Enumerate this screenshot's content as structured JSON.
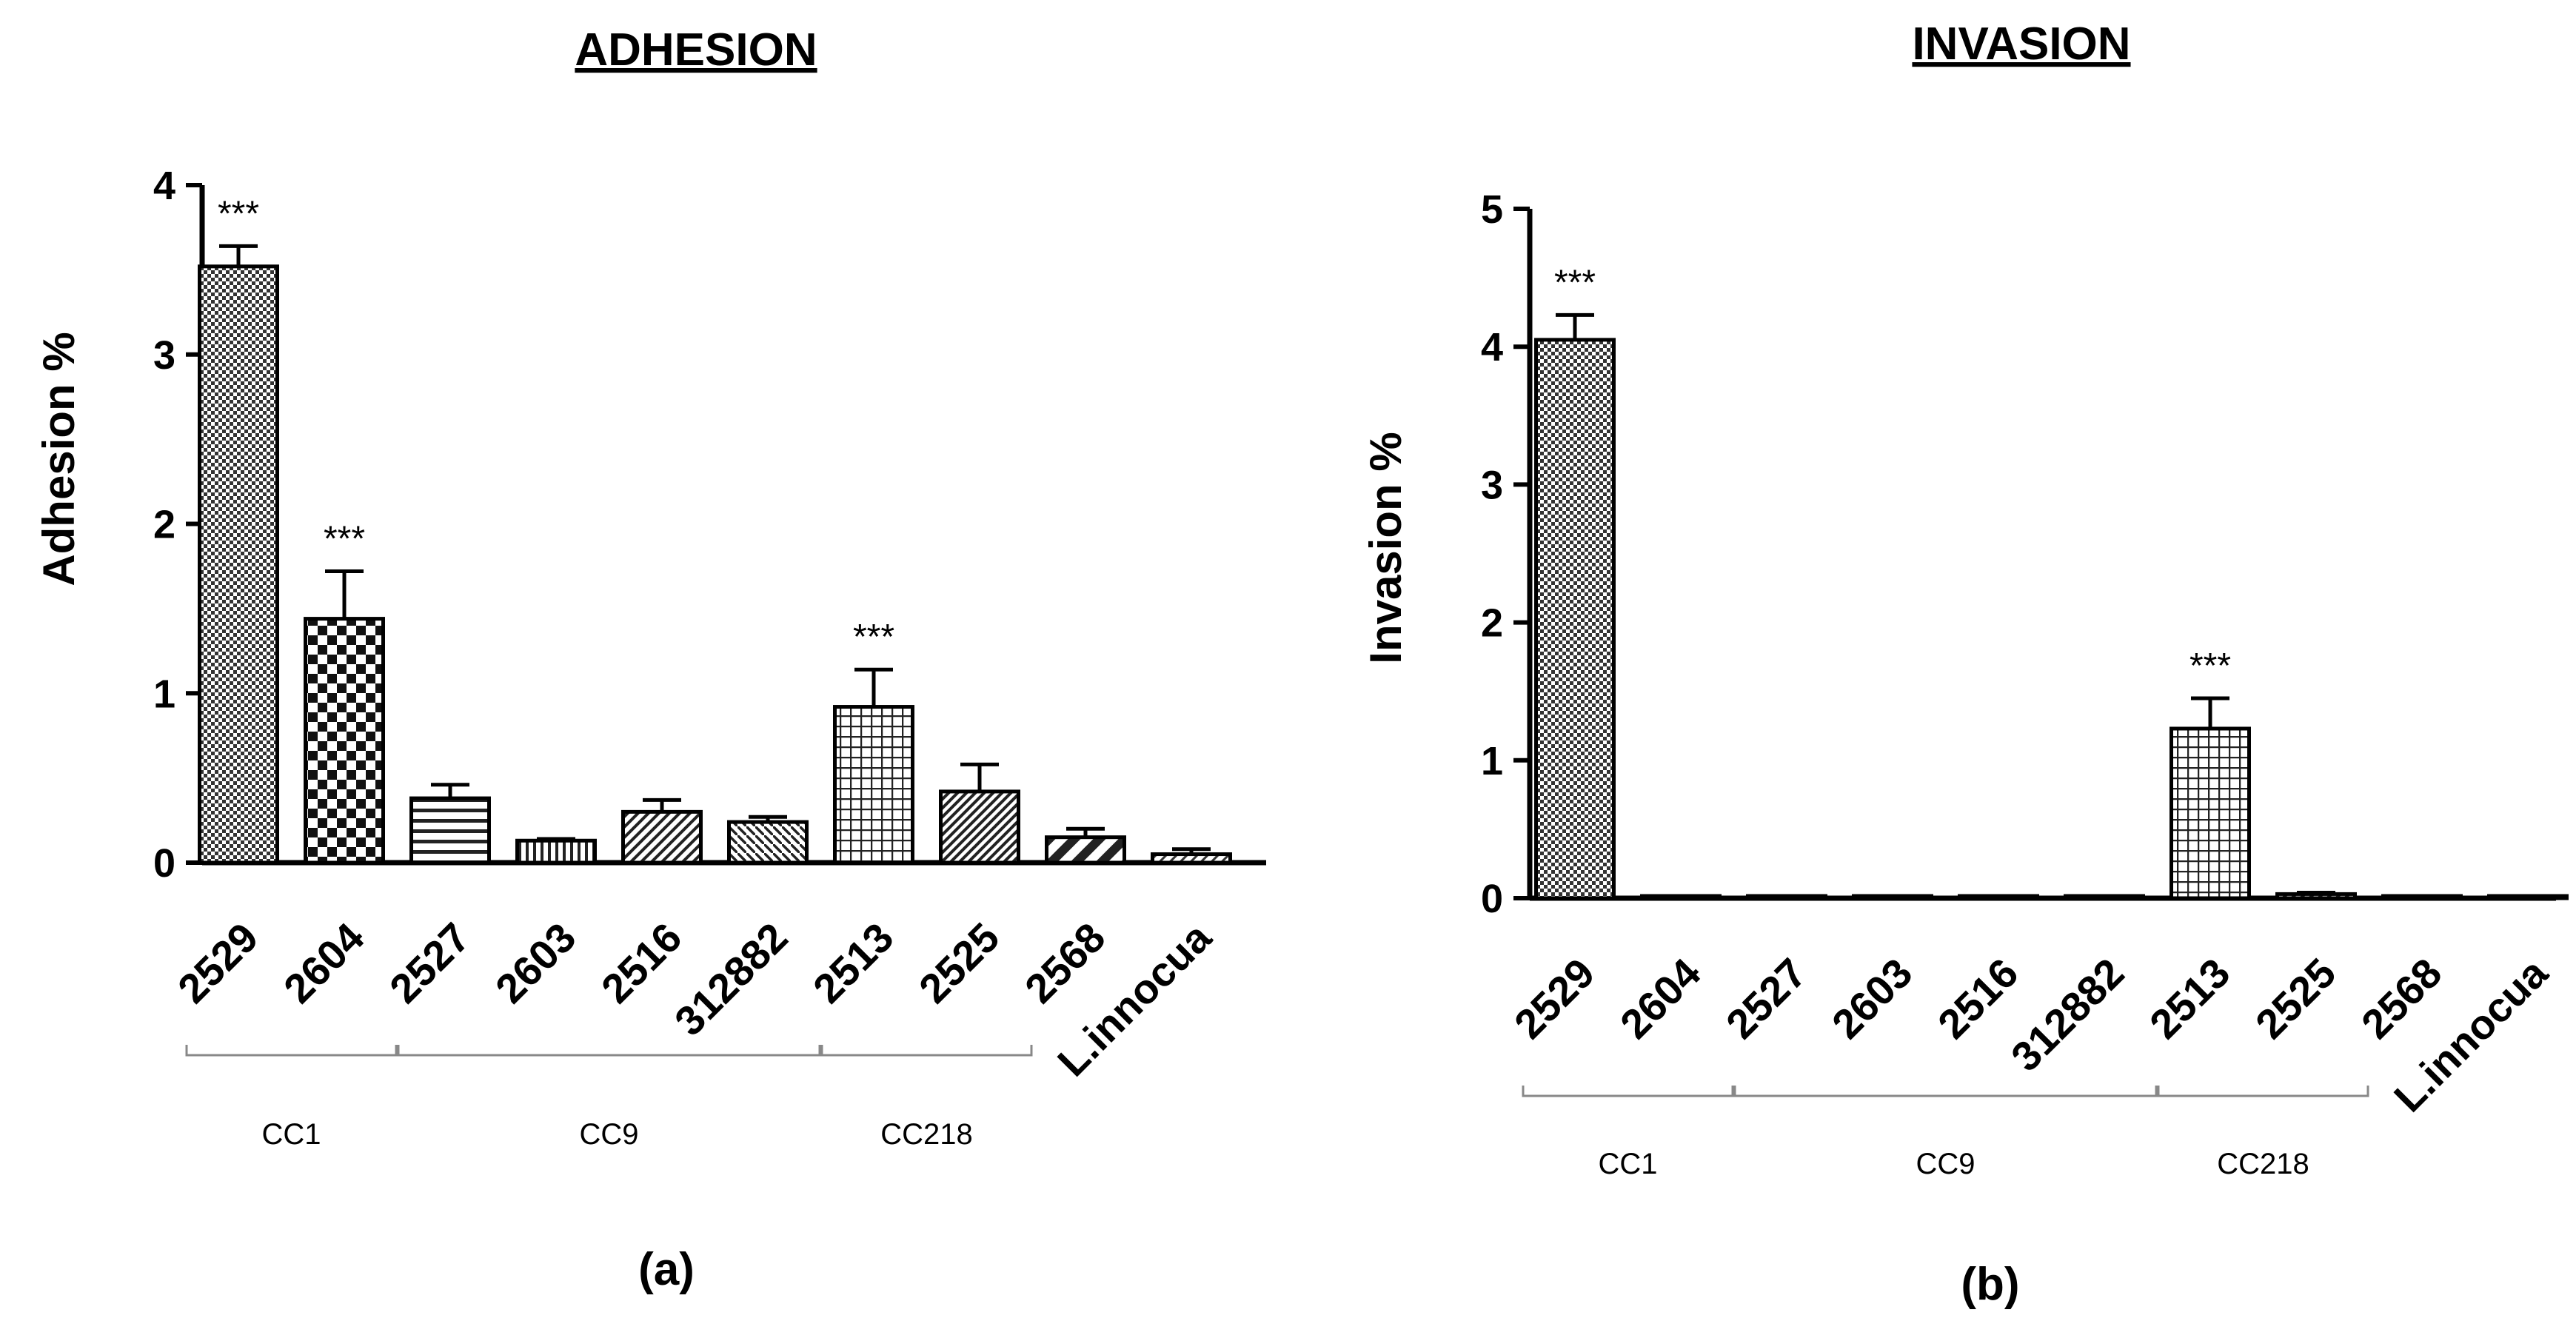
{
  "chart_data": [
    {
      "type": "bar",
      "title": "ADHESION",
      "xlabel": "",
      "ylabel": "Adhesion %",
      "ylim": [
        0,
        4
      ],
      "yticks": [
        "0",
        "1",
        "2",
        "3",
        "4"
      ],
      "categories": [
        "2529",
        "2604",
        "2527",
        "2603",
        "2516",
        "312882",
        "2513",
        "2525",
        "2568",
        "L.innocua"
      ],
      "values": [
        3.52,
        1.44,
        0.38,
        0.13,
        0.3,
        0.24,
        0.92,
        0.42,
        0.15,
        0.05
      ],
      "errors": [
        0.12,
        0.28,
        0.08,
        0.01,
        0.07,
        0.03,
        0.22,
        0.16,
        0.05,
        0.03
      ],
      "significance": [
        "***",
        "***",
        "",
        "",
        "",
        "",
        "***",
        "",
        "",
        ""
      ],
      "groups": [
        {
          "label": "CC1",
          "from": 0,
          "to": 1
        },
        {
          "label": "CC9",
          "from": 2,
          "to": 5
        },
        {
          "label": "CC218",
          "from": 6,
          "to": 7
        }
      ],
      "panel_label": "(a)"
    },
    {
      "type": "bar",
      "title": "INVASION",
      "xlabel": "",
      "ylabel": "Invasion %",
      "ylim": [
        0,
        5
      ],
      "yticks": [
        "0",
        "1",
        "2",
        "3",
        "4",
        "5"
      ],
      "categories": [
        "2529",
        "2604",
        "2527",
        "2603",
        "2516",
        "312882",
        "2513",
        "2525",
        "2568",
        "L.innocua"
      ],
      "values": [
        4.05,
        0.01,
        0.01,
        0.0,
        0.01,
        0.0,
        1.23,
        0.03,
        0.01,
        0.0
      ],
      "errors": [
        0.18,
        0.0,
        0.0,
        0.0,
        0.0,
        0.0,
        0.22,
        0.01,
        0.0,
        0.0
      ],
      "significance": [
        "***",
        "",
        "",
        "",
        "",
        "",
        "***",
        "",
        "",
        ""
      ],
      "groups": [
        {
          "label": "CC1",
          "from": 0,
          "to": 1
        },
        {
          "label": "CC9",
          "from": 2,
          "to": 5
        },
        {
          "label": "CC218",
          "from": 6,
          "to": 7
        }
      ],
      "panel_label": "(b)"
    }
  ]
}
